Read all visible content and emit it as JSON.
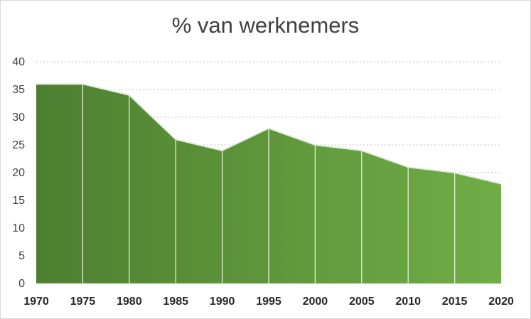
{
  "chart_data": {
    "type": "area",
    "title": "% van werknemers",
    "xlabel": "",
    "ylabel": "",
    "x": [
      "1970",
      "1975",
      "1980",
      "1985",
      "1990",
      "1995",
      "2000",
      "2005",
      "2010",
      "2015",
      "2020"
    ],
    "series": [
      {
        "values": [
          36,
          36,
          34,
          26,
          24,
          28,
          25,
          24,
          21,
          20,
          18
        ]
      }
    ],
    "ylim": [
      0,
      40
    ],
    "yticks": [
      0,
      5,
      10,
      15,
      20,
      25,
      30,
      35,
      40
    ],
    "grid": true,
    "legend": "none",
    "colors": {
      "fill_dark": "#4e7f30",
      "fill_light": "#70ad47",
      "outline": "#e2efd9",
      "gridline": "#bfbfbf"
    }
  }
}
